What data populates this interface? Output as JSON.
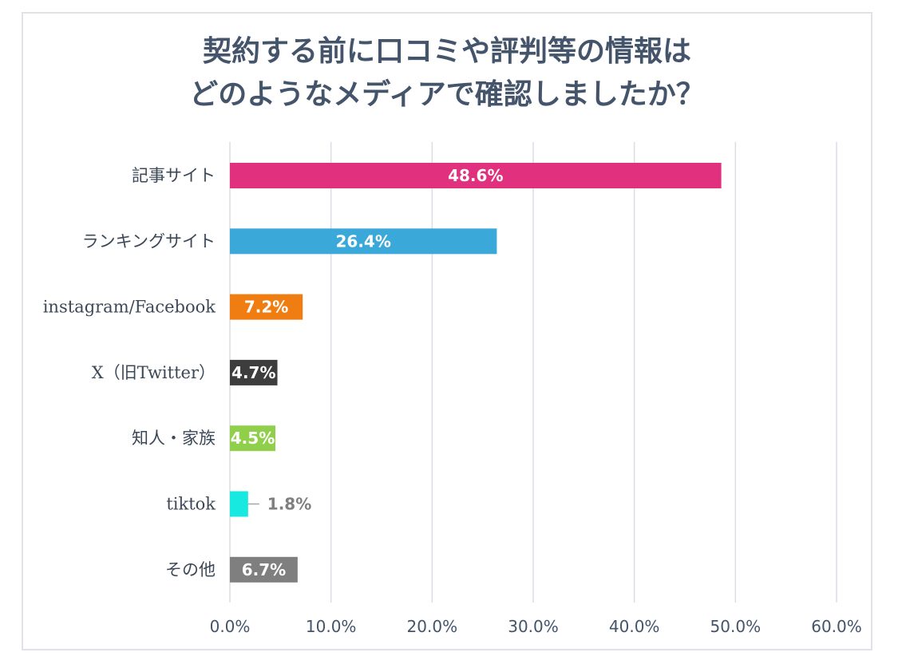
{
  "chart_data": {
    "type": "bar",
    "orientation": "horizontal",
    "title_lines": [
      "契約する前に口コミや評判等の情報は",
      "どのようなメディアで確認しましたか？"
    ],
    "categories": [
      "記事サイト",
      "ランキングサイト",
      "instagram/Facebook",
      "X（旧Twitter）",
      "知人・家族",
      "tiktok",
      "その他"
    ],
    "values": [
      48.6,
      26.4,
      7.2,
      4.7,
      4.5,
      1.8,
      6.7
    ],
    "value_labels": [
      "48.6%",
      "26.4%",
      "7.2%",
      "4.7%",
      "4.5%",
      "1.8%",
      "6.7%"
    ],
    "colors": [
      "#e0307e",
      "#3aa8d8",
      "#f07d12",
      "#3d3d3d",
      "#8fcf4a",
      "#17e8e0",
      "#7f7f7f"
    ],
    "label_outside": [
      false,
      false,
      false,
      false,
      false,
      true,
      false
    ],
    "xlim": [
      0,
      60
    ],
    "ticks": [
      0,
      10,
      20,
      30,
      40,
      50,
      60
    ],
    "tick_labels": [
      "0.0%",
      "10.0%",
      "20.0%",
      "30.0%",
      "40.0%",
      "50.0%",
      "60.0%"
    ],
    "grid": true,
    "gridline_color": "#d9dee5",
    "inside_label_color": "#ffffff",
    "outside_label_color": "#7f7f7f"
  }
}
